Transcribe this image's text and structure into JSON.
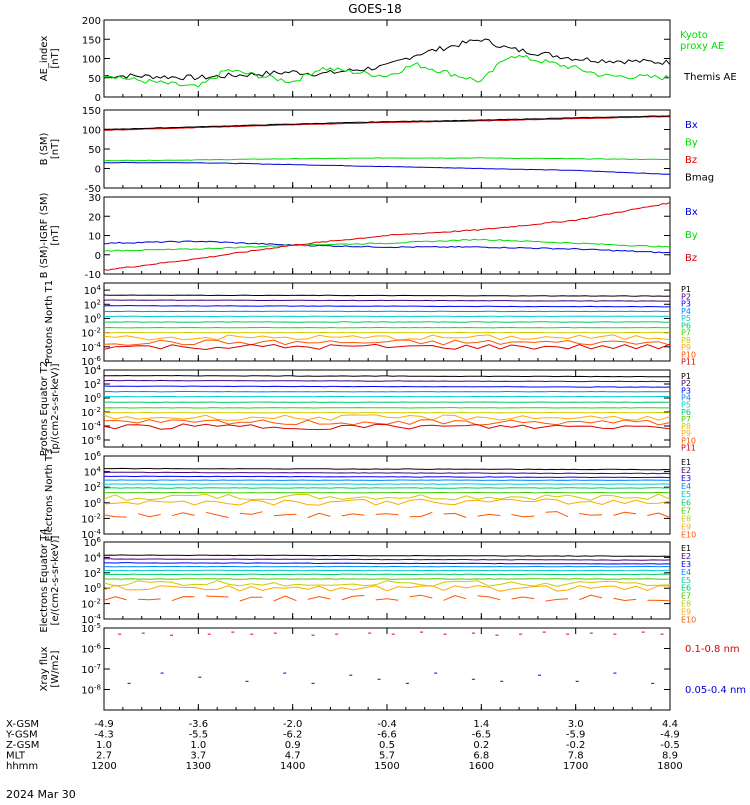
{
  "title": "GOES-18",
  "x_ticks": [
    "1200",
    "1300",
    "1400",
    "1500",
    "1600",
    "1700",
    "1800"
  ],
  "footer": {
    "rows": [
      {
        "label": "X-GSM",
        "values": [
          "-4.9",
          "-3.6",
          "-2.0",
          "-0.4",
          "1.4",
          "3.0",
          "4.4"
        ]
      },
      {
        "label": "Y-GSM",
        "values": [
          "-4.3",
          "-5.5",
          "-6.2",
          "-6.6",
          "-6.5",
          "-5.9",
          "-4.9"
        ]
      },
      {
        "label": "Z-GSM",
        "values": [
          "1.0",
          "1.0",
          "0.9",
          "0.5",
          "0.2",
          "-0.2",
          "-0.5"
        ]
      },
      {
        "label": "MLT",
        "values": [
          "2.7",
          "3.7",
          "4.7",
          "5.7",
          "6.8",
          "7.8",
          "8.9"
        ]
      },
      {
        "label": "hhmm",
        "values": [
          "1200",
          "1300",
          "1400",
          "1500",
          "1600",
          "1700",
          "1800"
        ]
      }
    ],
    "date": "2024 Mar 30"
  },
  "colors": {
    "black": "#000000",
    "green": "#00dd00",
    "blue": "#0000dd",
    "red": "#dd0000",
    "bands": [
      "#000000",
      "#4b0082",
      "#0000ff",
      "#0088ff",
      "#00cccc",
      "#00cc66",
      "#44cc00",
      "#cccc00",
      "#ffaa00",
      "#ff5500",
      "#dd0000",
      "#aa0000"
    ]
  },
  "chart_data": [
    {
      "type": "line",
      "ylabel": "AE_index [nT]",
      "ylim": [
        0,
        200
      ],
      "yticks": [
        "0",
        "50",
        "100",
        "150",
        "200"
      ],
      "legend": [
        {
          "name": "Kyoto proxy AE",
          "color": "#00dd00"
        },
        {
          "name": "Themis AE",
          "color": "#000000"
        }
      ],
      "x": [
        1200,
        1230,
        1300,
        1330,
        1400,
        1430,
        1500,
        1530,
        1600,
        1630,
        1700,
        1730,
        1800
      ],
      "series": [
        {
          "name": "Themis AE",
          "values": [
            55,
            55,
            50,
            55,
            65,
            60,
            80,
            110,
            150,
            125,
            100,
            95,
            90
          ]
        },
        {
          "name": "Kyoto proxy AE",
          "values": [
            60,
            45,
            25,
            70,
            40,
            75,
            55,
            85,
            40,
            110,
            75,
            55,
            50
          ]
        }
      ]
    },
    {
      "type": "line",
      "ylabel": "B (SM) [nT]",
      "ylim": [
        -50,
        150
      ],
      "yticks": [
        "-50",
        "0",
        "50",
        "100",
        "150"
      ],
      "legend": [
        {
          "name": "Bx",
          "color": "#0000dd"
        },
        {
          "name": "By",
          "color": "#00dd00"
        },
        {
          "name": "Bz",
          "color": "#dd0000"
        },
        {
          "name": "Bmag",
          "color": "#000000"
        }
      ],
      "x": [
        1200,
        1300,
        1400,
        1500,
        1600,
        1700,
        1800
      ],
      "series": [
        {
          "name": "Bx",
          "values": [
            15,
            15,
            10,
            5,
            0,
            -5,
            -15
          ]
        },
        {
          "name": "By",
          "values": [
            20,
            22,
            25,
            27,
            27,
            25,
            23
          ]
        },
        {
          "name": "Bz",
          "values": [
            98,
            105,
            112,
            118,
            122,
            128,
            133
          ]
        },
        {
          "name": "Bmag",
          "values": [
            100,
            107,
            114,
            120,
            124,
            130,
            135
          ]
        }
      ]
    },
    {
      "type": "line",
      "ylabel": "B (SM)-IGRF (SM) [nT]",
      "ylim": [
        -10,
        30
      ],
      "yticks": [
        "-10",
        "0",
        "10",
        "20",
        "30"
      ],
      "legend": [
        {
          "name": "Bx",
          "color": "#0000dd"
        },
        {
          "name": "By",
          "color": "#00dd00"
        },
        {
          "name": "Bz",
          "color": "#dd0000"
        }
      ],
      "x": [
        1200,
        1300,
        1400,
        1500,
        1600,
        1700,
        1800
      ],
      "series": [
        {
          "name": "Bx",
          "values": [
            6,
            7,
            5,
            4,
            4,
            3,
            1
          ]
        },
        {
          "name": "By",
          "values": [
            2,
            3,
            5,
            6,
            8,
            6,
            4
          ]
        },
        {
          "name": "Bz",
          "values": [
            -8,
            -2,
            5,
            10,
            13,
            18,
            27
          ]
        }
      ]
    },
    {
      "type": "line",
      "ylabel": "Protons North T1",
      "yscale": "log",
      "ylim_exp": [
        -6,
        5
      ],
      "yticks": [
        "10^4",
        "10^2",
        "10^0",
        "10^-2",
        "10^-4",
        "10^-6"
      ],
      "yticks_exp": [
        4,
        2,
        0,
        -2,
        -4,
        -6
      ],
      "channels": [
        "P1",
        "P2",
        "P3",
        "P4",
        "P5",
        "P6",
        "P7",
        "P8",
        "P9",
        "P10",
        "P11"
      ],
      "levels_exp": [
        3.3,
        2.6,
        1.8,
        1.0,
        0.3,
        -0.5,
        -1.3,
        -2.0,
        -2.7,
        -3.4,
        -4.0
      ]
    },
    {
      "type": "line",
      "ylabel": "Protons Equator T2 [p/(cm2-s-sr-keV)]",
      "yscale": "log",
      "ylim_exp": [
        -7,
        4
      ],
      "yticks": [
        "10^4",
        "10^2",
        "10^0",
        "10^-2",
        "10^-4",
        "10^-6"
      ],
      "yticks_exp": [
        4,
        2,
        0,
        -2,
        -4,
        -6
      ],
      "channels": [
        "P1",
        "P2",
        "P3",
        "P4",
        "P5",
        "P6",
        "P7",
        "P8",
        "P9",
        "P10",
        "P11"
      ],
      "levels_exp": [
        3.2,
        2.5,
        1.7,
        0.9,
        0.2,
        -0.6,
        -1.4,
        -2.1,
        -2.8,
        -3.5,
        -4.1
      ]
    },
    {
      "type": "line",
      "ylabel": "Electrons North T3",
      "yscale": "log",
      "ylim_exp": [
        -4,
        6
      ],
      "yticks": [
        "10^6",
        "10^4",
        "10^2",
        "10^0",
        "10^-2",
        "10^-4"
      ],
      "yticks_exp": [
        6,
        4,
        2,
        0,
        -2,
        -4
      ],
      "channels": [
        "E1",
        "E2",
        "E3",
        "E4",
        "E5",
        "E6",
        "E7",
        "E8",
        "E9",
        "E10"
      ],
      "levels_exp": [
        4.4,
        3.9,
        3.4,
        2.9,
        2.4,
        1.9,
        1.3,
        0.7,
        0.1,
        -1.5
      ]
    },
    {
      "type": "line",
      "ylabel": "Electrons Equator T4 [e/(cm2-s-sr-keV)]",
      "yscale": "log",
      "ylim_exp": [
        -4,
        6
      ],
      "yticks": [
        "10^6",
        "10^4",
        "10^2",
        "10^0",
        "10^-2",
        "10^-4"
      ],
      "yticks_exp": [
        6,
        4,
        2,
        0,
        -2,
        -4
      ],
      "channels": [
        "E1",
        "E2",
        "E3",
        "E4",
        "E5",
        "E6",
        "E7",
        "E8",
        "E9",
        "E10"
      ],
      "levels_exp": [
        4.3,
        3.8,
        3.3,
        2.8,
        2.3,
        1.8,
        1.2,
        0.6,
        0.0,
        -1.3
      ]
    },
    {
      "type": "scatter",
      "ylabel": "Xray flux [W/m2]",
      "yscale": "log",
      "ylim_exp": [
        -9,
        -5
      ],
      "yticks": [
        "10^-5",
        "10^-6",
        "10^-7",
        "10^-8"
      ],
      "yticks_exp": [
        -5,
        -6,
        -7,
        -8
      ],
      "legend": [
        {
          "name": "0.1-0.8 nm",
          "color": "#dd0000"
        },
        {
          "name": "0.05-0.4 nm",
          "color": "#0000dd"
        }
      ],
      "series": [
        {
          "name": "0.1-0.8 nm",
          "x": [
            1215,
            1240,
            1270,
            1310,
            1335,
            1355,
            1380,
            1420,
            1445,
            1480,
            1505,
            1535,
            1560,
            1590,
            1615,
            1640,
            1665,
            1690,
            1715,
            1740,
            1770,
            1790
          ],
          "values_exp": [
            -5.3,
            -5.25,
            -5.35,
            -5.3,
            -5.2,
            -5.3,
            -5.25,
            -5.35,
            -5.3,
            -5.25,
            -5.3,
            -5.2,
            -5.3,
            -5.25,
            -5.35,
            -5.3,
            -5.2,
            -5.3,
            -5.25,
            -5.3,
            -5.2,
            -5.3
          ]
        },
        {
          "name": "0.05-0.4 nm",
          "x": [
            1225,
            1260,
            1300,
            1350,
            1390,
            1420,
            1460,
            1490,
            1520,
            1550,
            1590,
            1620,
            1660,
            1700,
            1740,
            1780
          ],
          "values_exp": [
            -7.7,
            -7.2,
            -7.4,
            -7.6,
            -7.2,
            -7.7,
            -7.3,
            -7.5,
            -7.7,
            -7.2,
            -7.5,
            -7.6,
            -7.3,
            -7.6,
            -7.2,
            -7.7
          ]
        }
      ]
    }
  ]
}
